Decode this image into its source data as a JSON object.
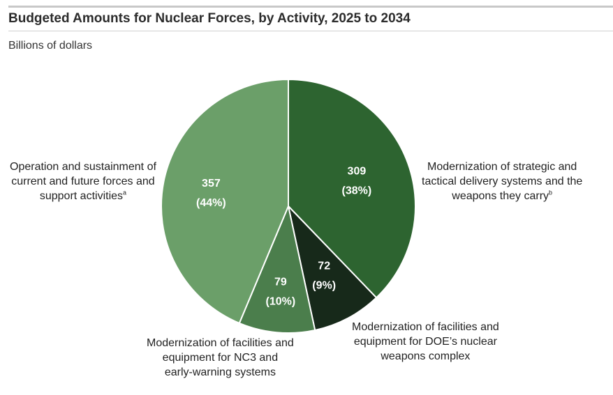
{
  "header": {
    "title": "Budgeted Amounts for Nuclear Forces, by Activity, 2025 to 2034",
    "units": "Billions of dollars"
  },
  "chart_data": {
    "type": "pie",
    "title": "Budgeted Amounts for Nuclear Forces, by Activity, 2025 to 2034",
    "subtitle": "Billions of dollars",
    "slices": [
      {
        "label_lines": [
          "Modernization of strategic and",
          "tactical delivery systems and the",
          "weapons they carry"
        ],
        "footnote": "b",
        "value": 309,
        "value_label": "309",
        "percent_label": "(38%)",
        "color": "#2d6430",
        "text_color": "#ffffff"
      },
      {
        "label_lines": [
          "Modernization of facilities and",
          "equipment for DOE’s nuclear",
          "weapons complex"
        ],
        "footnote": "",
        "value": 72,
        "value_label": "72",
        "percent_label": "(9%)",
        "color": "#17291a",
        "text_color": "#ffffff"
      },
      {
        "label_lines": [
          "Modernization of facilities and",
          "equipment for NC3 and",
          "early-warning systems"
        ],
        "footnote": "",
        "value": 79,
        "value_label": "79",
        "percent_label": "(10%)",
        "color": "#4b7e4c",
        "text_color": "#ffffff"
      },
      {
        "label_lines": [
          "Operation and sustainment of",
          "current and future forces and",
          "support activities"
        ],
        "footnote": "a",
        "value": 357,
        "value_label": "357",
        "percent_label": "(44%)",
        "color": "#6b9f69",
        "text_color": "#ffffff"
      }
    ],
    "start": "12 o'clock",
    "direction": "clockwise",
    "slice_border_color": "#ffffff"
  }
}
